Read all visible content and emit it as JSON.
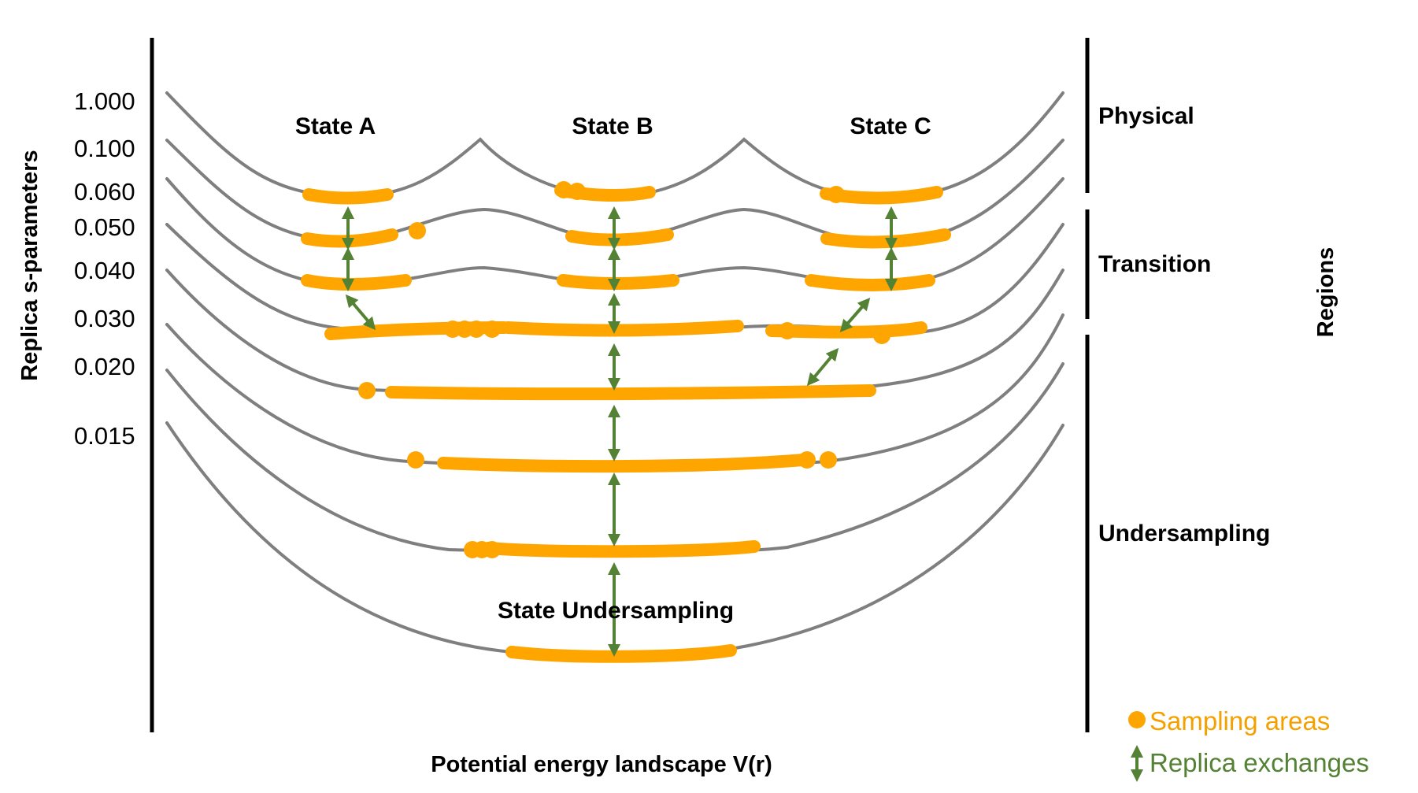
{
  "axis": {
    "y_title": "Replica s-parameters",
    "x_title": "Potential energy landscape V(r)",
    "right_title": "Regions"
  },
  "s_values": [
    "1.000",
    "0.100",
    "0.060",
    "0.050",
    "0.040",
    "0.030",
    "0.020",
    "0.015"
  ],
  "states": {
    "a": "State A",
    "b": "State B",
    "c": "State C",
    "undersampling": "State Undersampling"
  },
  "regions": {
    "physical": "Physical",
    "transition": "Transition",
    "undersampling": "Undersampling"
  },
  "legend": {
    "sampling": "Sampling areas",
    "exchanges": "Replica exchanges"
  },
  "colors": {
    "curve": "#7f7f7f",
    "sampling": "#ffa500",
    "exchange": "#548235",
    "sampling_text": "#f4a100",
    "exchange_text": "#548235"
  }
}
